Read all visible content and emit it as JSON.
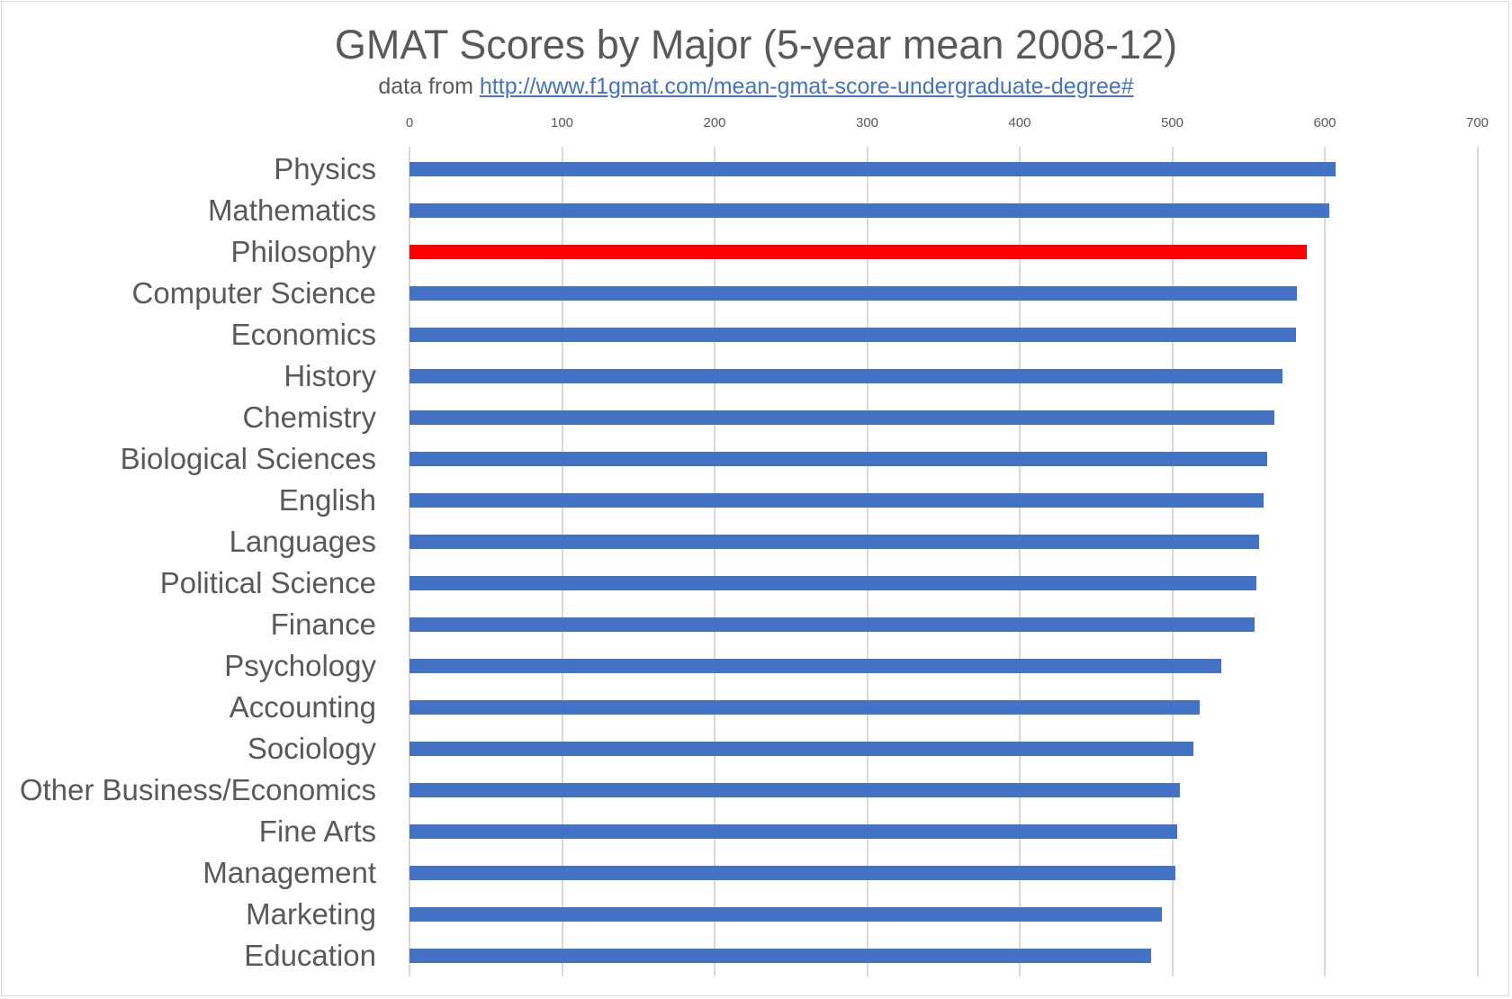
{
  "chart_data": {
    "type": "bar",
    "orientation": "horizontal",
    "title": "GMAT Scores by Major (5-year mean 2008-12)",
    "subtitle_prefix": "data from ",
    "subtitle_link": "http://www.f1gmat.com/mean-gmat-score-undergraduate-degree#",
    "xlabel": "",
    "ylabel": "",
    "xlim": [
      0,
      700
    ],
    "x_ticks": [
      "0",
      "100",
      "200",
      "300",
      "400",
      "500",
      "600",
      "700"
    ],
    "grid": true,
    "legend": null,
    "colors": {
      "default": "#4472c4",
      "highlight": "#ff0000"
    },
    "highlighted_category": "Philosophy",
    "categories": [
      "Physics",
      "Mathematics",
      "Philosophy",
      "Computer Science",
      "Economics",
      "History",
      "Chemistry",
      "Biological Sciences",
      "English",
      "Languages",
      "Political Science",
      "Finance",
      "Psychology",
      "Accounting",
      "Sociology",
      "Other Business/Economics",
      "Fine Arts",
      "Management",
      "Marketing",
      "Education"
    ],
    "values": [
      607,
      603,
      588,
      582,
      581,
      572,
      567,
      562,
      560,
      557,
      555,
      554,
      532,
      518,
      514,
      505,
      503,
      502,
      493,
      486
    ]
  }
}
